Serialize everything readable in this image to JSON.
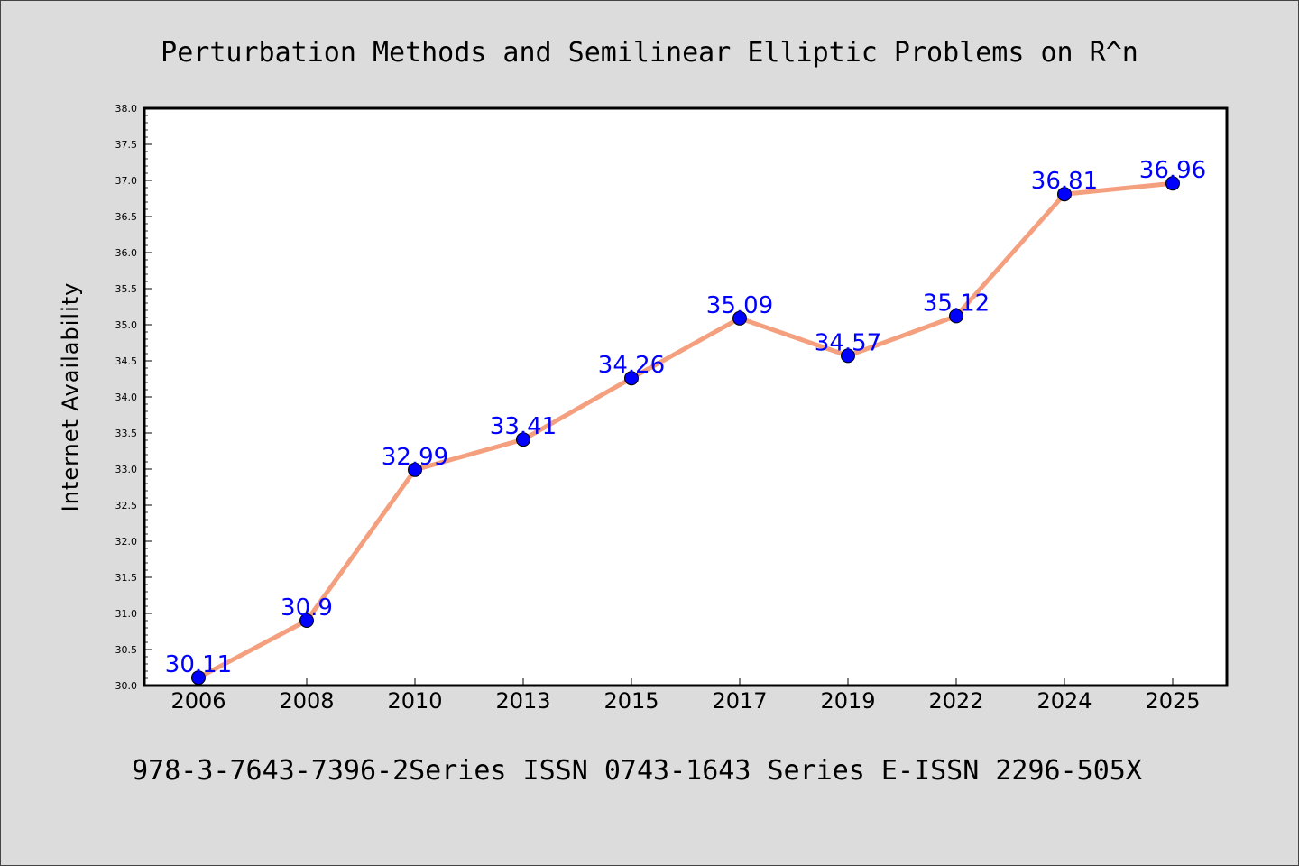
{
  "chart_data": {
    "type": "line",
    "title": "Perturbation Methods and Semilinear Elliptic Problems on R^n",
    "ylabel": "Internet Availability",
    "xlabel": "",
    "footer": "978-3-7643-7396-2Series ISSN 0743-1643 Series E-ISSN 2296-505X",
    "categories": [
      "2006",
      "2008",
      "2010",
      "2013",
      "2015",
      "2017",
      "2019",
      "2022",
      "2024",
      "2025"
    ],
    "values": [
      30.11,
      30.9,
      32.99,
      33.41,
      34.26,
      35.09,
      34.57,
      35.12,
      36.81,
      36.96
    ],
    "data_labels": [
      "30.11",
      "30.9",
      "32.99",
      "33.41",
      "34.26",
      "35.09",
      "34.57",
      "35.12",
      "36.81",
      "36.96"
    ],
    "yticks": [
      "30.0",
      "30.5",
      "31.0",
      "31.5",
      "32.0",
      "32.5",
      "33.0",
      "33.5",
      "34.0",
      "34.5",
      "35.0",
      "35.5",
      "36.0",
      "36.5",
      "37.0",
      "37.5",
      "38.0"
    ],
    "ylim": [
      30.0,
      38.0
    ],
    "grid": false,
    "legend": "none",
    "colors": {
      "line": "#f4a07f",
      "marker": "#0000ff",
      "data_label": "#0000ff",
      "background": "#dcdcdc",
      "plot_background": "#ffffff"
    }
  }
}
